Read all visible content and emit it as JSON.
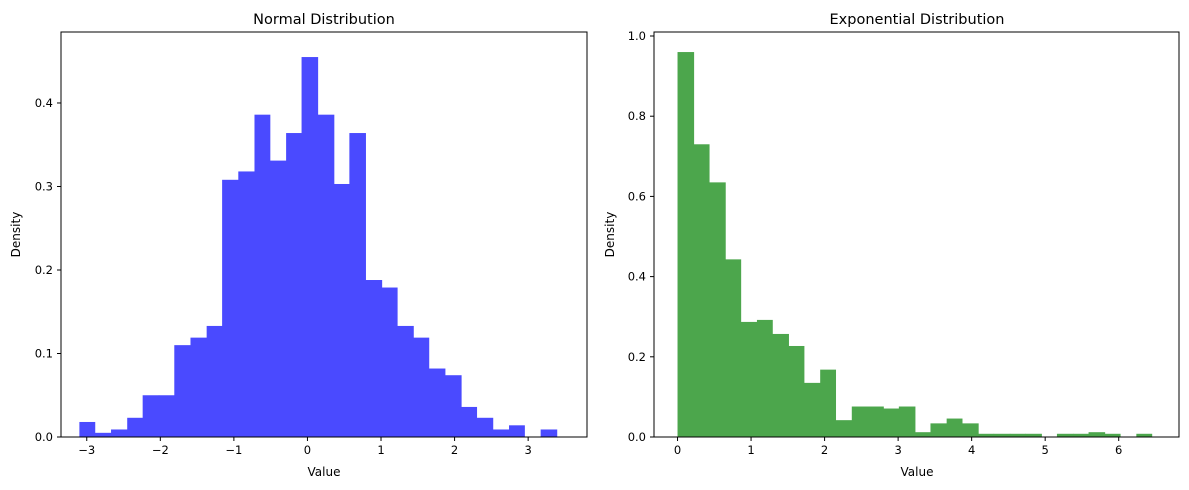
{
  "chart_data": [
    {
      "type": "histogram",
      "title": "Normal Distribution",
      "xlabel": "Value",
      "ylabel": "Density",
      "color": "#4a4aff",
      "xlim": [
        -3.35,
        3.8
      ],
      "ylim": [
        0,
        0.485
      ],
      "grid": false,
      "x_ticks": [
        -3,
        -2,
        -1,
        0,
        1,
        2,
        3
      ],
      "x_tick_labels": [
        "−3",
        "−2",
        "−1",
        "0",
        "1",
        "2",
        "3"
      ],
      "y_ticks": [
        0.0,
        0.1,
        0.2,
        0.3,
        0.4
      ],
      "y_tick_labels": [
        "0.0",
        "0.1",
        "0.2",
        "0.3",
        "0.4"
      ],
      "bins": [
        {
          "x0": -3.1,
          "x1": -2.89,
          "y": 0.018
        },
        {
          "x0": -2.89,
          "x1": -2.67,
          "y": 0.005
        },
        {
          "x0": -2.67,
          "x1": -2.45,
          "y": 0.009
        },
        {
          "x0": -2.45,
          "x1": -2.24,
          "y": 0.023
        },
        {
          "x0": -2.24,
          "x1": -2.02,
          "y": 0.05
        },
        {
          "x0": -2.02,
          "x1": -1.81,
          "y": 0.05
        },
        {
          "x0": -1.81,
          "x1": -1.59,
          "y": 0.11
        },
        {
          "x0": -1.59,
          "x1": -1.37,
          "y": 0.119
        },
        {
          "x0": -1.37,
          "x1": -1.16,
          "y": 0.133
        },
        {
          "x0": -1.16,
          "x1": -0.94,
          "y": 0.308
        },
        {
          "x0": -0.94,
          "x1": -0.72,
          "y": 0.318
        },
        {
          "x0": -0.72,
          "x1": -0.51,
          "y": 0.386
        },
        {
          "x0": -0.51,
          "x1": -0.29,
          "y": 0.331
        },
        {
          "x0": -0.29,
          "x1": -0.08,
          "y": 0.364
        },
        {
          "x0": -0.08,
          "x1": 0.14,
          "y": 0.455
        },
        {
          "x0": 0.14,
          "x1": 0.36,
          "y": 0.386
        },
        {
          "x0": 0.36,
          "x1": 0.57,
          "y": 0.303
        },
        {
          "x0": 0.57,
          "x1": 0.79,
          "y": 0.364
        },
        {
          "x0": 0.79,
          "x1": 1.01,
          "y": 0.188
        },
        {
          "x0": 1.01,
          "x1": 1.22,
          "y": 0.179
        },
        {
          "x0": 1.22,
          "x1": 1.44,
          "y": 0.133
        },
        {
          "x0": 1.44,
          "x1": 1.65,
          "y": 0.119
        },
        {
          "x0": 1.65,
          "x1": 1.87,
          "y": 0.082
        },
        {
          "x0": 1.87,
          "x1": 2.09,
          "y": 0.074
        },
        {
          "x0": 2.09,
          "x1": 2.3,
          "y": 0.036
        },
        {
          "x0": 2.3,
          "x1": 2.52,
          "y": 0.023
        },
        {
          "x0": 2.52,
          "x1": 2.74,
          "y": 0.009
        },
        {
          "x0": 2.74,
          "x1": 2.95,
          "y": 0.014
        },
        {
          "x0": 2.95,
          "x1": 3.17,
          "y": 0.0
        },
        {
          "x0": 3.17,
          "x1": 3.39,
          "y": 0.009
        }
      ]
    },
    {
      "type": "histogram",
      "title": "Exponential Distribution",
      "xlabel": "Value",
      "ylabel": "Density",
      "color": "#4ca64c",
      "xlim": [
        -0.32,
        6.82
      ],
      "ylim": [
        0,
        1.01
      ],
      "grid": false,
      "x_ticks": [
        0,
        1,
        2,
        3,
        4,
        5,
        6
      ],
      "x_tick_labels": [
        "0",
        "1",
        "2",
        "3",
        "4",
        "5",
        "6"
      ],
      "y_ticks": [
        0.0,
        0.2,
        0.4,
        0.6,
        0.8,
        1.0
      ],
      "y_tick_labels": [
        "0.0",
        "0.2",
        "0.4",
        "0.6",
        "0.8",
        "1.0"
      ],
      "bins": [
        {
          "x0": 0.0,
          "x1": 0.22,
          "y": 0.96
        },
        {
          "x0": 0.22,
          "x1": 0.43,
          "y": 0.73
        },
        {
          "x0": 0.43,
          "x1": 0.65,
          "y": 0.635
        },
        {
          "x0": 0.65,
          "x1": 0.86,
          "y": 0.443
        },
        {
          "x0": 0.86,
          "x1": 1.08,
          "y": 0.287
        },
        {
          "x0": 1.08,
          "x1": 1.29,
          "y": 0.292
        },
        {
          "x0": 1.29,
          "x1": 1.51,
          "y": 0.257
        },
        {
          "x0": 1.51,
          "x1": 1.72,
          "y": 0.227
        },
        {
          "x0": 1.72,
          "x1": 1.94,
          "y": 0.135
        },
        {
          "x0": 1.94,
          "x1": 2.15,
          "y": 0.168
        },
        {
          "x0": 2.15,
          "x1": 2.37,
          "y": 0.042
        },
        {
          "x0": 2.37,
          "x1": 2.58,
          "y": 0.076
        },
        {
          "x0": 2.58,
          "x1": 2.8,
          "y": 0.076
        },
        {
          "x0": 2.8,
          "x1": 3.01,
          "y": 0.071
        },
        {
          "x0": 3.01,
          "x1": 3.23,
          "y": 0.076
        },
        {
          "x0": 3.23,
          "x1": 3.44,
          "y": 0.012
        },
        {
          "x0": 3.44,
          "x1": 3.66,
          "y": 0.034
        },
        {
          "x0": 3.66,
          "x1": 3.87,
          "y": 0.046
        },
        {
          "x0": 3.87,
          "x1": 4.09,
          "y": 0.034
        },
        {
          "x0": 4.09,
          "x1": 4.3,
          "y": 0.008
        },
        {
          "x0": 4.3,
          "x1": 4.52,
          "y": 0.008
        },
        {
          "x0": 4.52,
          "x1": 4.73,
          "y": 0.008
        },
        {
          "x0": 4.73,
          "x1": 4.95,
          "y": 0.008
        },
        {
          "x0": 4.95,
          "x1": 5.16,
          "y": 0.0
        },
        {
          "x0": 5.16,
          "x1": 5.38,
          "y": 0.008
        },
        {
          "x0": 5.38,
          "x1": 5.59,
          "y": 0.008
        },
        {
          "x0": 5.59,
          "x1": 5.81,
          "y": 0.012
        },
        {
          "x0": 5.81,
          "x1": 6.02,
          "y": 0.008
        },
        {
          "x0": 6.02,
          "x1": 6.24,
          "y": 0.0
        },
        {
          "x0": 6.24,
          "x1": 6.45,
          "y": 0.008
        }
      ]
    }
  ]
}
